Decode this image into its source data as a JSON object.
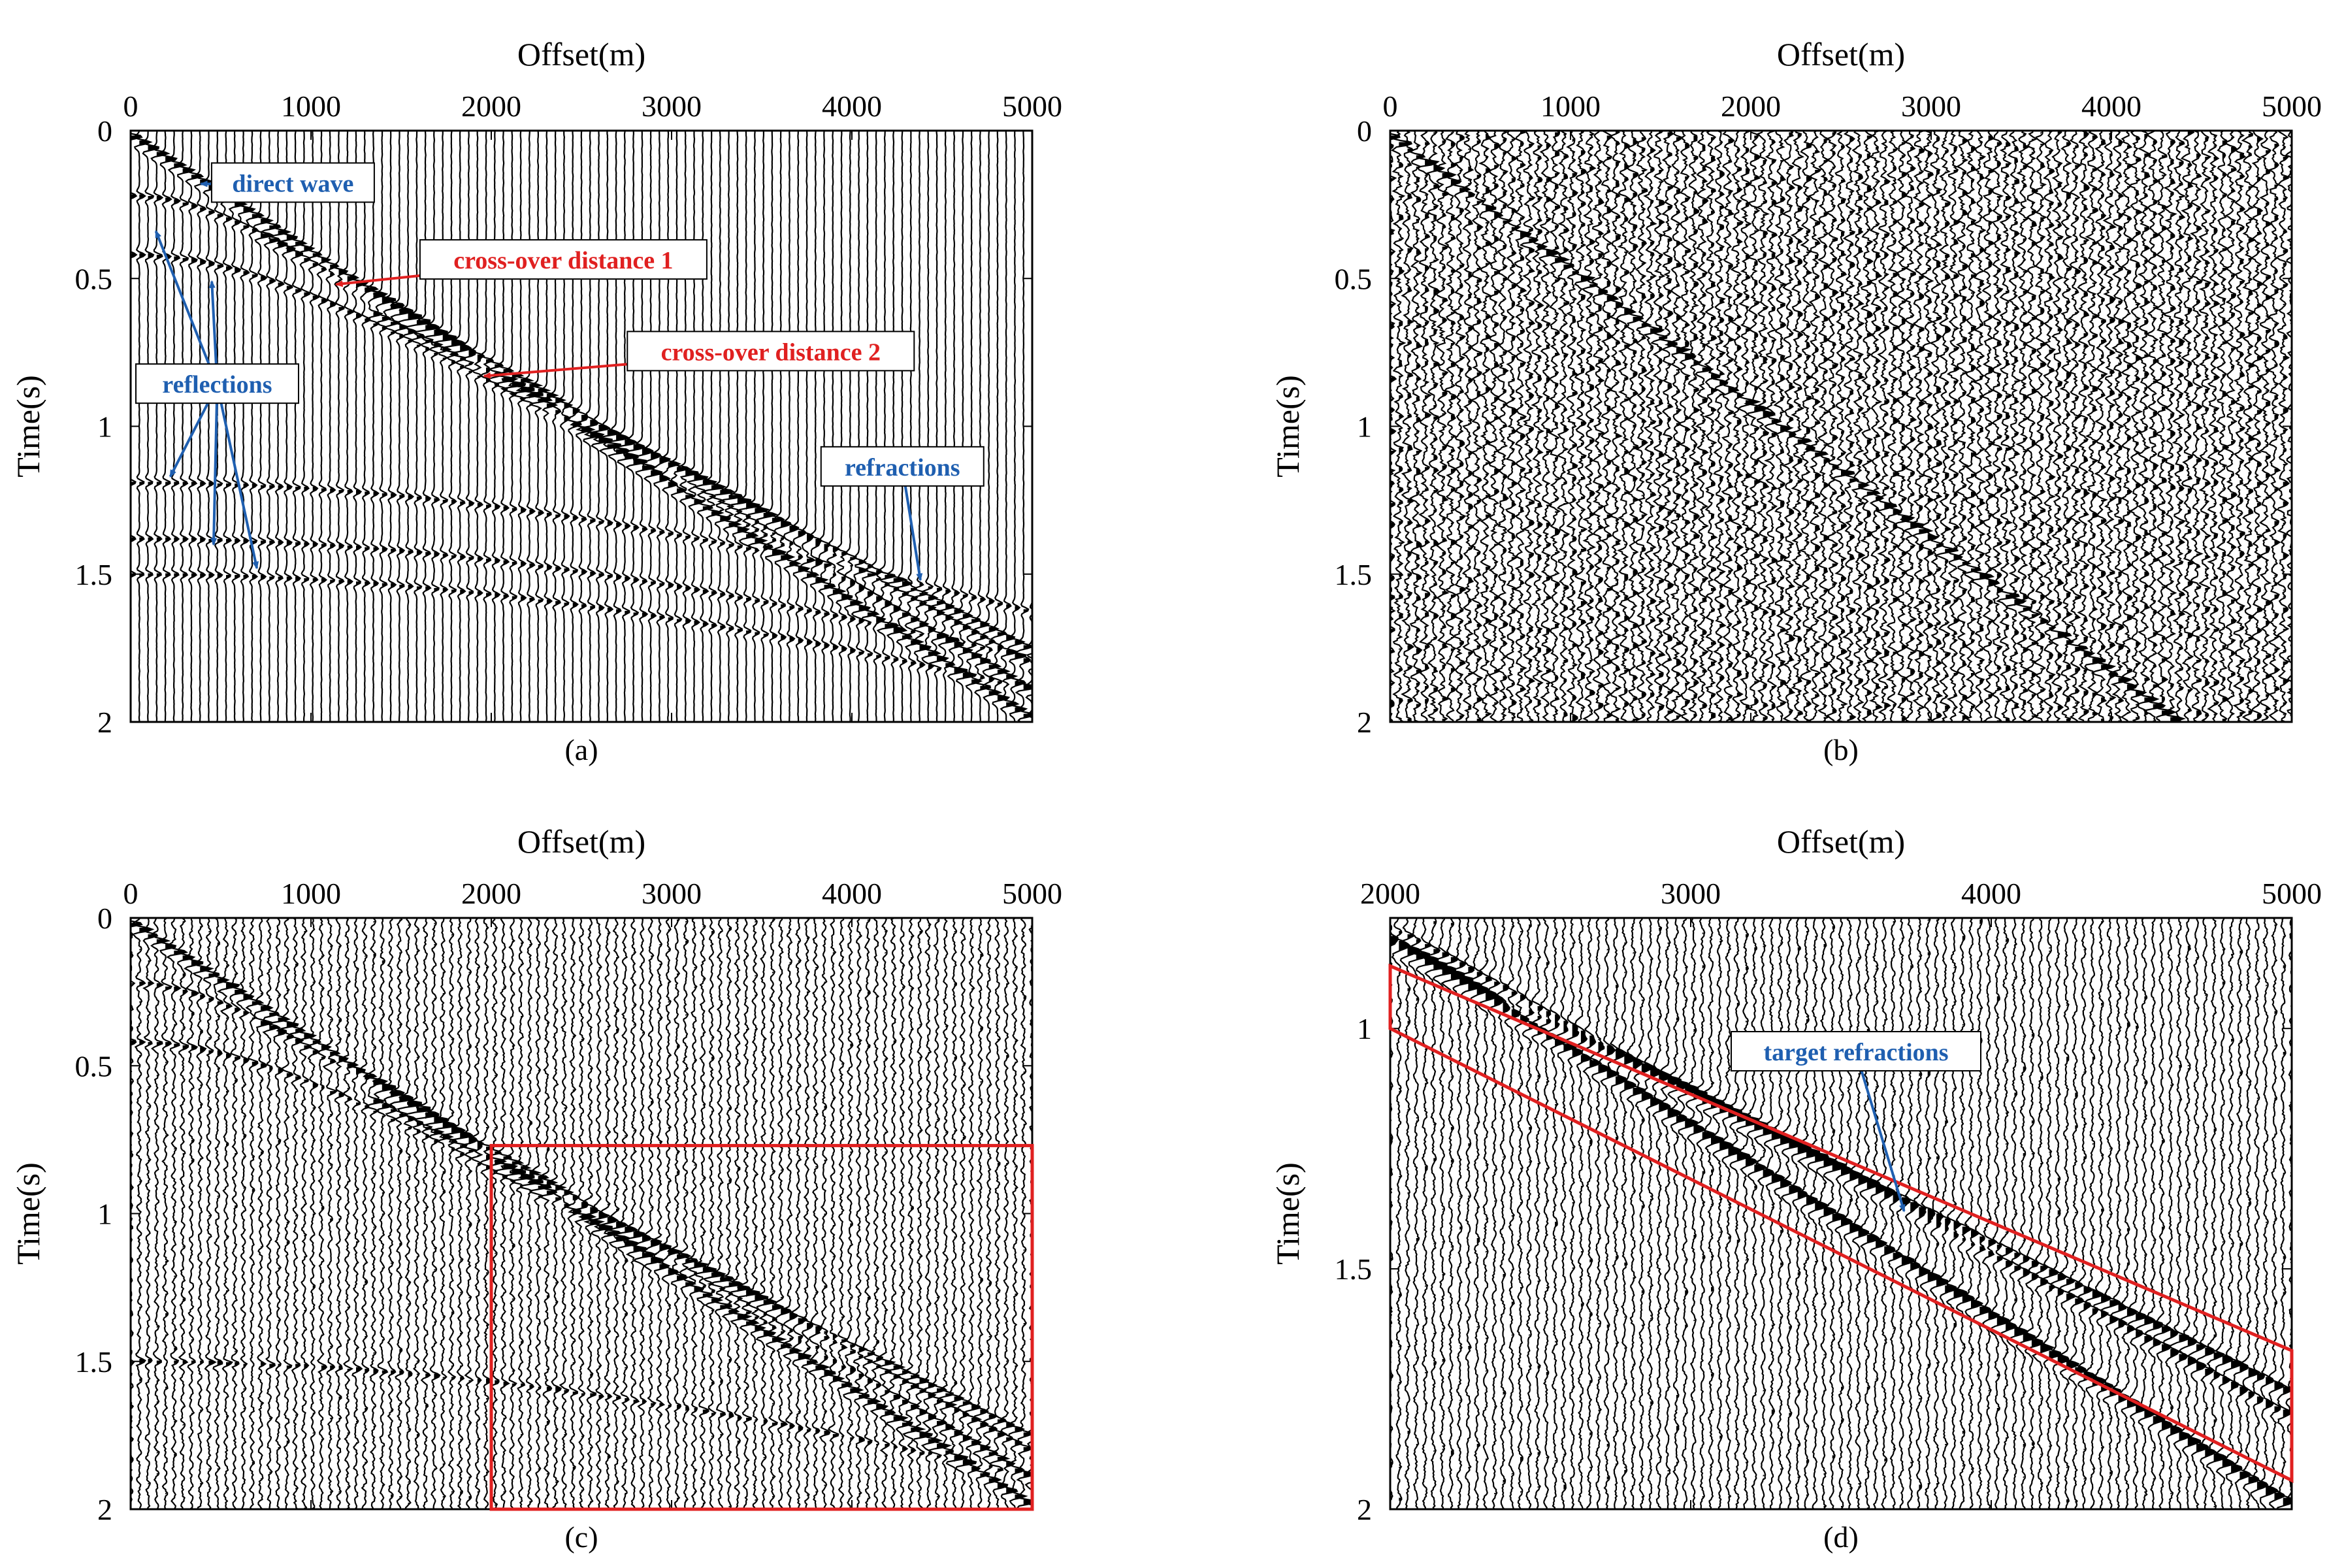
{
  "colors": {
    "annotation_blue": "#1f5fb0",
    "annotation_red": "#e02020",
    "box_red": "#e02020",
    "axis": "#000000"
  },
  "chart_data": [
    {
      "id": "a",
      "type": "seismic_wiggle",
      "caption": "(a)",
      "xlabel": "Offset(m)",
      "ylabel": "Time(s)",
      "xlim": [
        0,
        5000
      ],
      "ylim": [
        0,
        2
      ],
      "y_inverted": true,
      "xticks": [
        0,
        1000,
        2000,
        3000,
        4000,
        5000
      ],
      "yticks": [
        0,
        0.5,
        1,
        1.5,
        2
      ],
      "x_axis_position": "top",
      "noise": 0.05,
      "events": [
        {
          "name": "direct wave",
          "type": "linear",
          "t0": 0.02,
          "slope_s_per_m": 0.000395,
          "amp": 1.4
        },
        {
          "name": "refraction 1",
          "type": "linear",
          "t0": 0.11,
          "slope_s_per_m": 0.00034,
          "x_from": 700,
          "amp": 0.9
        },
        {
          "name": "refraction 2",
          "type": "linear",
          "t0": 0.2,
          "slope_s_per_m": 0.000312,
          "x_from": 1300,
          "amp": 1.1
        },
        {
          "name": "reflection 1",
          "type": "hyperbolic",
          "t0": 0.22,
          "v_mps": 2650,
          "amp": 0.7
        },
        {
          "name": "reflection 2",
          "type": "hyperbolic",
          "t0": 0.42,
          "v_mps": 2700,
          "amp": 0.7
        },
        {
          "name": "reflection 3",
          "type": "hyperbolic",
          "t0": 1.19,
          "v_mps": 4500,
          "amp": 0.6
        },
        {
          "name": "reflection 4",
          "type": "hyperbolic",
          "t0": 1.38,
          "v_mps": 4400,
          "amp": 0.6
        },
        {
          "name": "reflection 5",
          "type": "hyperbolic",
          "t0": 1.5,
          "v_mps": 4350,
          "amp": 0.6
        }
      ],
      "annotations": [
        {
          "text": "direct wave",
          "color": "blue",
          "label_at": [
            900,
            0.18
          ],
          "arrows_to": [
            [
              390,
              0.18
            ]
          ]
        },
        {
          "text": "cross-over distance 1",
          "color": "red",
          "label_at": [
            2400,
            0.44
          ],
          "arrows_to": [
            [
              1140,
              0.52
            ]
          ]
        },
        {
          "text": "cross-over distance 2",
          "color": "red",
          "label_at": [
            3550,
            0.75
          ],
          "arrows_to": [
            [
              1960,
              0.83
            ]
          ]
        },
        {
          "text": "reflections",
          "color": "blue",
          "label_at": [
            480,
            0.86
          ],
          "arrows_to": [
            [
              140,
              0.34
            ],
            [
              450,
              0.51
            ],
            [
              220,
              1.17
            ],
            [
              460,
              1.4
            ],
            [
              700,
              1.48
            ]
          ]
        },
        {
          "text": "refractions",
          "color": "blue",
          "label_at": [
            4280,
            1.14
          ],
          "arrows_to": [
            [
              4380,
              1.52
            ]
          ]
        }
      ]
    },
    {
      "id": "b",
      "type": "seismic_wiggle",
      "caption": "(b)",
      "xlabel": "Offset(m)",
      "ylabel": "Time(s)",
      "xlim": [
        0,
        5000
      ],
      "ylim": [
        0,
        2
      ],
      "y_inverted": true,
      "xticks": [
        0,
        1000,
        2000,
        3000,
        4000,
        5000
      ],
      "yticks": [
        0,
        0.5,
        1,
        1.5,
        2
      ],
      "x_axis_position": "top",
      "noise": 0.85,
      "events": [
        {
          "name": "direct wave",
          "type": "linear",
          "t0": 0.02,
          "slope_s_per_m": 0.000455,
          "amp": 1.2
        }
      ],
      "annotations": []
    },
    {
      "id": "c",
      "type": "seismic_wiggle",
      "caption": "(c)",
      "xlabel": "Offset(m)",
      "ylabel": "Time(s)",
      "xlim": [
        0,
        5000
      ],
      "ylim": [
        0,
        2
      ],
      "y_inverted": true,
      "xticks": [
        0,
        1000,
        2000,
        3000,
        4000,
        5000
      ],
      "yticks": [
        0,
        0.5,
        1,
        1.5,
        2
      ],
      "x_axis_position": "top",
      "noise": 0.4,
      "events": [
        {
          "name": "direct wave",
          "type": "linear",
          "t0": 0.02,
          "slope_s_per_m": 0.000395,
          "amp": 1.4
        },
        {
          "name": "refraction 1",
          "type": "linear",
          "t0": 0.11,
          "slope_s_per_m": 0.00034,
          "x_from": 700,
          "amp": 0.9
        },
        {
          "name": "refraction 2",
          "type": "linear",
          "t0": 0.2,
          "slope_s_per_m": 0.000312,
          "x_from": 1300,
          "amp": 1.1
        },
        {
          "name": "reflection 1",
          "type": "hyperbolic",
          "t0": 0.22,
          "v_mps": 2650,
          "amp": 0.6
        },
        {
          "name": "reflection 2",
          "type": "hyperbolic",
          "t0": 0.42,
          "v_mps": 2700,
          "amp": 0.6
        },
        {
          "name": "reflection 5",
          "type": "hyperbolic",
          "t0": 1.5,
          "v_mps": 4350,
          "amp": 0.5
        }
      ],
      "highlight_box": {
        "x0": 2000,
        "x1": 5000,
        "t0": 0.77,
        "t1": 2.0
      },
      "annotations": []
    },
    {
      "id": "d",
      "type": "seismic_wiggle",
      "caption": "(d)",
      "xlabel": "Offset(m)",
      "ylabel": "Time(s)",
      "xlim": [
        2000,
        5000
      ],
      "ylim": [
        0.77,
        2
      ],
      "y_inverted": true,
      "xticks": [
        2000,
        3000,
        4000,
        5000
      ],
      "yticks": [
        1,
        1.5,
        2
      ],
      "x_axis_position": "top",
      "noise": 0.4,
      "events": [
        {
          "name": "direct wave",
          "type": "linear",
          "t0": 0.02,
          "slope_s_per_m": 0.000395,
          "amp": 1.4
        },
        {
          "name": "refraction 1",
          "type": "linear",
          "t0": 0.11,
          "slope_s_per_m": 0.00034,
          "amp": 0.9
        },
        {
          "name": "refraction 2",
          "type": "linear",
          "t0": 0.2,
          "slope_s_per_m": 0.000312,
          "amp": 1.1
        }
      ],
      "target_polygon": [
        [
          2000,
          0.87
        ],
        [
          5000,
          1.67
        ],
        [
          5000,
          1.94
        ],
        [
          2000,
          1.0
        ]
      ],
      "annotations": [
        {
          "text": "target refractions",
          "color": "blue",
          "label_at": [
            3550,
            1.05
          ],
          "arrows_to": [
            [
              3710,
              1.38
            ]
          ]
        }
      ]
    }
  ]
}
